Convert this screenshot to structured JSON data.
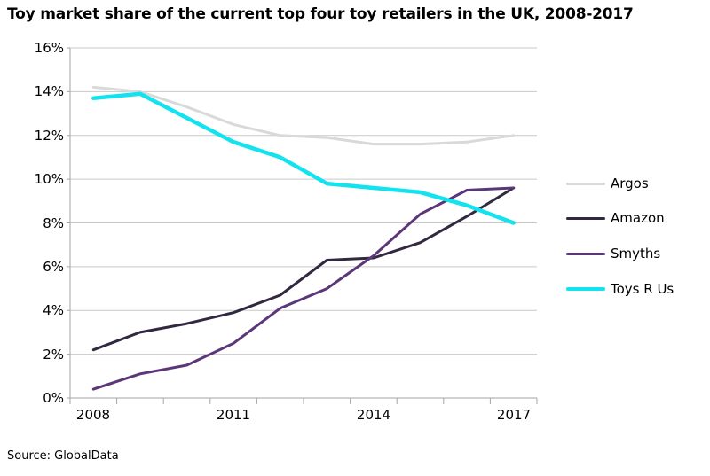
{
  "header": {
    "title": "Toy market share of the current top four toy retailers in the UK, 2008-2017"
  },
  "source": {
    "text": "Source: GlobalData"
  },
  "chart_data": {
    "type": "line",
    "title": "Toy market share of the current top four toy retailers in the UK, 2008-2017",
    "categories": [
      2008,
      2009,
      2010,
      2011,
      2012,
      2013,
      2014,
      2015,
      2016,
      2017
    ],
    "series": [
      {
        "name": "Argos",
        "color": "#d9d9d9",
        "stroke_width": 3,
        "values": [
          14.2,
          14.0,
          13.3,
          12.5,
          12.0,
          11.9,
          11.6,
          11.6,
          11.7,
          12.0
        ]
      },
      {
        "name": "Amazon",
        "color": "#322940",
        "stroke_width": 3,
        "values": [
          2.2,
          3.0,
          3.4,
          3.9,
          4.7,
          6.3,
          6.4,
          7.1,
          8.3,
          9.6
        ]
      },
      {
        "name": "Smyths",
        "color": "#5b3779",
        "stroke_width": 3,
        "values": [
          0.4,
          1.1,
          1.5,
          2.5,
          4.1,
          5.0,
          6.5,
          8.4,
          9.5,
          9.6
        ]
      },
      {
        "name": "Toys R Us",
        "color": "#12e3ee",
        "stroke_width": 4.5,
        "values": [
          13.7,
          13.9,
          12.8,
          11.7,
          11.0,
          9.8,
          9.6,
          9.4,
          8.8,
          8.0
        ]
      }
    ],
    "xlabel": "",
    "ylabel": "",
    "ylim": [
      0,
      16
    ],
    "yticks": [
      16,
      14,
      12,
      10,
      8,
      6,
      4,
      2,
      0
    ],
    "ytick_labels": [
      "16%",
      "14%",
      "12%",
      "10%",
      "8%",
      "6%",
      "4%",
      "2%",
      "0%"
    ],
    "xtick_labels": [
      "2008",
      "2011",
      "2014",
      "2017"
    ],
    "grid": "horizontal",
    "legend_position": "right",
    "colors": {
      "gridline": "#c9c9c9",
      "axis": "#a6a6a6",
      "background": "#ffffff",
      "text": "#000000"
    }
  }
}
